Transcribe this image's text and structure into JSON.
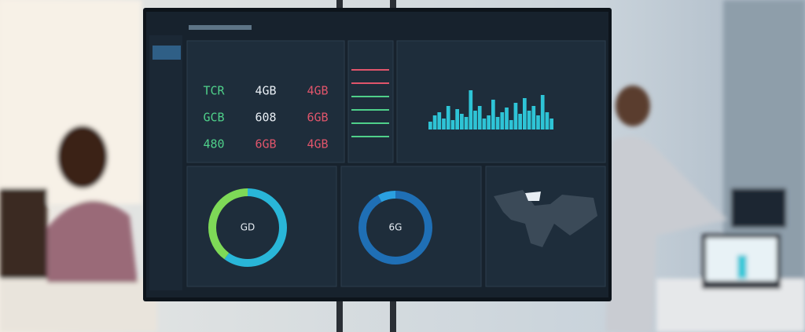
{
  "dashboard": {
    "stats": [
      [
        "TCR",
        "4GB",
        "4GB"
      ],
      [
        "GCB",
        "608",
        "6GB"
      ],
      [
        "480",
        "6GB",
        "4GB"
      ]
    ],
    "bars": {
      "color": "#2ec4d6",
      "values": [
        10,
        18,
        22,
        14,
        30,
        12,
        26,
        20,
        16,
        50,
        24,
        30,
        14,
        18,
        38,
        16,
        22,
        28,
        12,
        34,
        20,
        40,
        24,
        30,
        18,
        44,
        22,
        14
      ]
    },
    "donuts": [
      {
        "center": "GD",
        "segments": [
          {
            "value": 60,
            "color": "#29b6d8"
          },
          {
            "value": 40,
            "color": "#7ed957"
          }
        ]
      },
      {
        "center": "6G",
        "segments": [
          {
            "value": 92,
            "color": "#1f6fb5"
          },
          {
            "value": 8,
            "color": "#2aa0e0"
          }
        ]
      }
    ]
  }
}
